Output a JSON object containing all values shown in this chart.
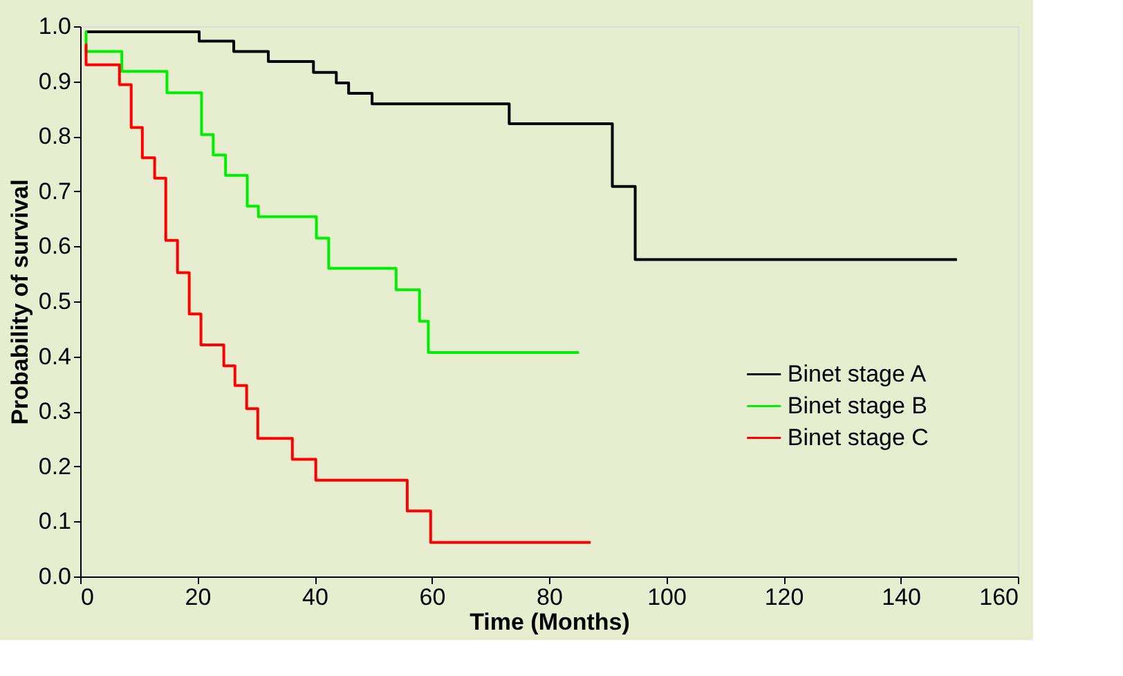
{
  "chart_data": {
    "type": "step",
    "xlabel": "Time (Months)",
    "ylabel": "Probability of survival",
    "xlim": [
      0,
      160
    ],
    "xticks": [
      0,
      20,
      40,
      60,
      80,
      100,
      120,
      140,
      160
    ],
    "ylim": [
      0,
      1
    ],
    "yticks": [
      {
        "value": 0,
        "label": "0.0"
      },
      0.1,
      0.2,
      0.3,
      0.4,
      0.5,
      0.6,
      0.7,
      0.8,
      0.9,
      {
        "value": 1,
        "label": "1.0"
      }
    ],
    "grid": false,
    "legend": "right",
    "marker": "none",
    "line_style": "solid",
    "series": [
      {
        "name": "Binet stage A",
        "color": "#000000",
        "x": [
          0.9,
          20.3,
          26.2,
          32.1,
          39.8,
          43.7,
          45.8,
          49.8,
          73.2,
          90.8,
          94.7,
          149.6
        ],
        "values": [
          0.99,
          0.973,
          0.954,
          0.936,
          0.916,
          0.897,
          0.878,
          0.859,
          0.823,
          0.709,
          0.576,
          0.576
        ]
      },
      {
        "name": "Binet stage B",
        "color": "#00ee00",
        "x": [
          0.9,
          1.0,
          7.1,
          14.8,
          20.7,
          22.7,
          24.8,
          28.5,
          30.4,
          40.3,
          42.4,
          53.9,
          57.9,
          59.4,
          85.1
        ],
        "values": [
          0.99,
          0.954,
          0.918,
          0.879,
          0.803,
          0.766,
          0.729,
          0.673,
          0.654,
          0.615,
          0.56,
          0.521,
          0.464,
          0.407,
          0.407
        ]
      },
      {
        "name": "Binet stage C",
        "color": "#ff0000",
        "x": [
          0.9,
          1.0,
          6.7,
          8.7,
          10.6,
          12.7,
          14.6,
          16.6,
          18.6,
          20.6,
          24.5,
          26.4,
          28.4,
          30.3,
          36.2,
          40.2,
          55.8,
          59.8,
          87.1
        ],
        "values": [
          0.967,
          0.93,
          0.894,
          0.816,
          0.761,
          0.724,
          0.611,
          0.552,
          0.477,
          0.421,
          0.383,
          0.347,
          0.305,
          0.251,
          0.213,
          0.175,
          0.119,
          0.062,
          0.062
        ]
      }
    ]
  }
}
